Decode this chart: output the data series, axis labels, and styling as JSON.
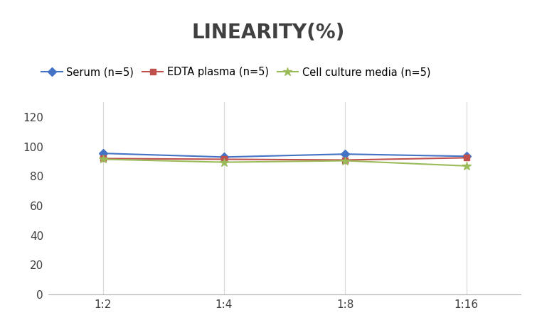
{
  "title": "LINEARITY(%)",
  "title_fontsize": 20,
  "title_fontweight": "bold",
  "x_labels": [
    "1:2",
    "1:4",
    "1:8",
    "1:16"
  ],
  "x_positions": [
    0,
    1,
    2,
    3
  ],
  "series": [
    {
      "label": "Serum (n=5)",
      "values": [
        95.5,
        93.0,
        95.0,
        93.5
      ],
      "color": "#4472C4",
      "marker": "D",
      "markersize": 6,
      "linewidth": 1.5
    },
    {
      "label": "EDTA plasma (n=5)",
      "values": [
        92.0,
        91.5,
        91.0,
        92.5
      ],
      "color": "#C0504D",
      "marker": "s",
      "markersize": 6,
      "linewidth": 1.5
    },
    {
      "label": "Cell culture media (n=5)",
      "values": [
        91.5,
        89.5,
        90.5,
        87.0
      ],
      "color": "#9BBB59",
      "marker": "*",
      "markersize": 9,
      "linewidth": 1.5
    }
  ],
  "ylim": [
    0,
    130
  ],
  "yticks": [
    0,
    20,
    40,
    60,
    80,
    100,
    120
  ],
  "grid_color": "#D9D9D9",
  "background_color": "#FFFFFF",
  "legend_fontsize": 10.5,
  "tick_fontsize": 11
}
